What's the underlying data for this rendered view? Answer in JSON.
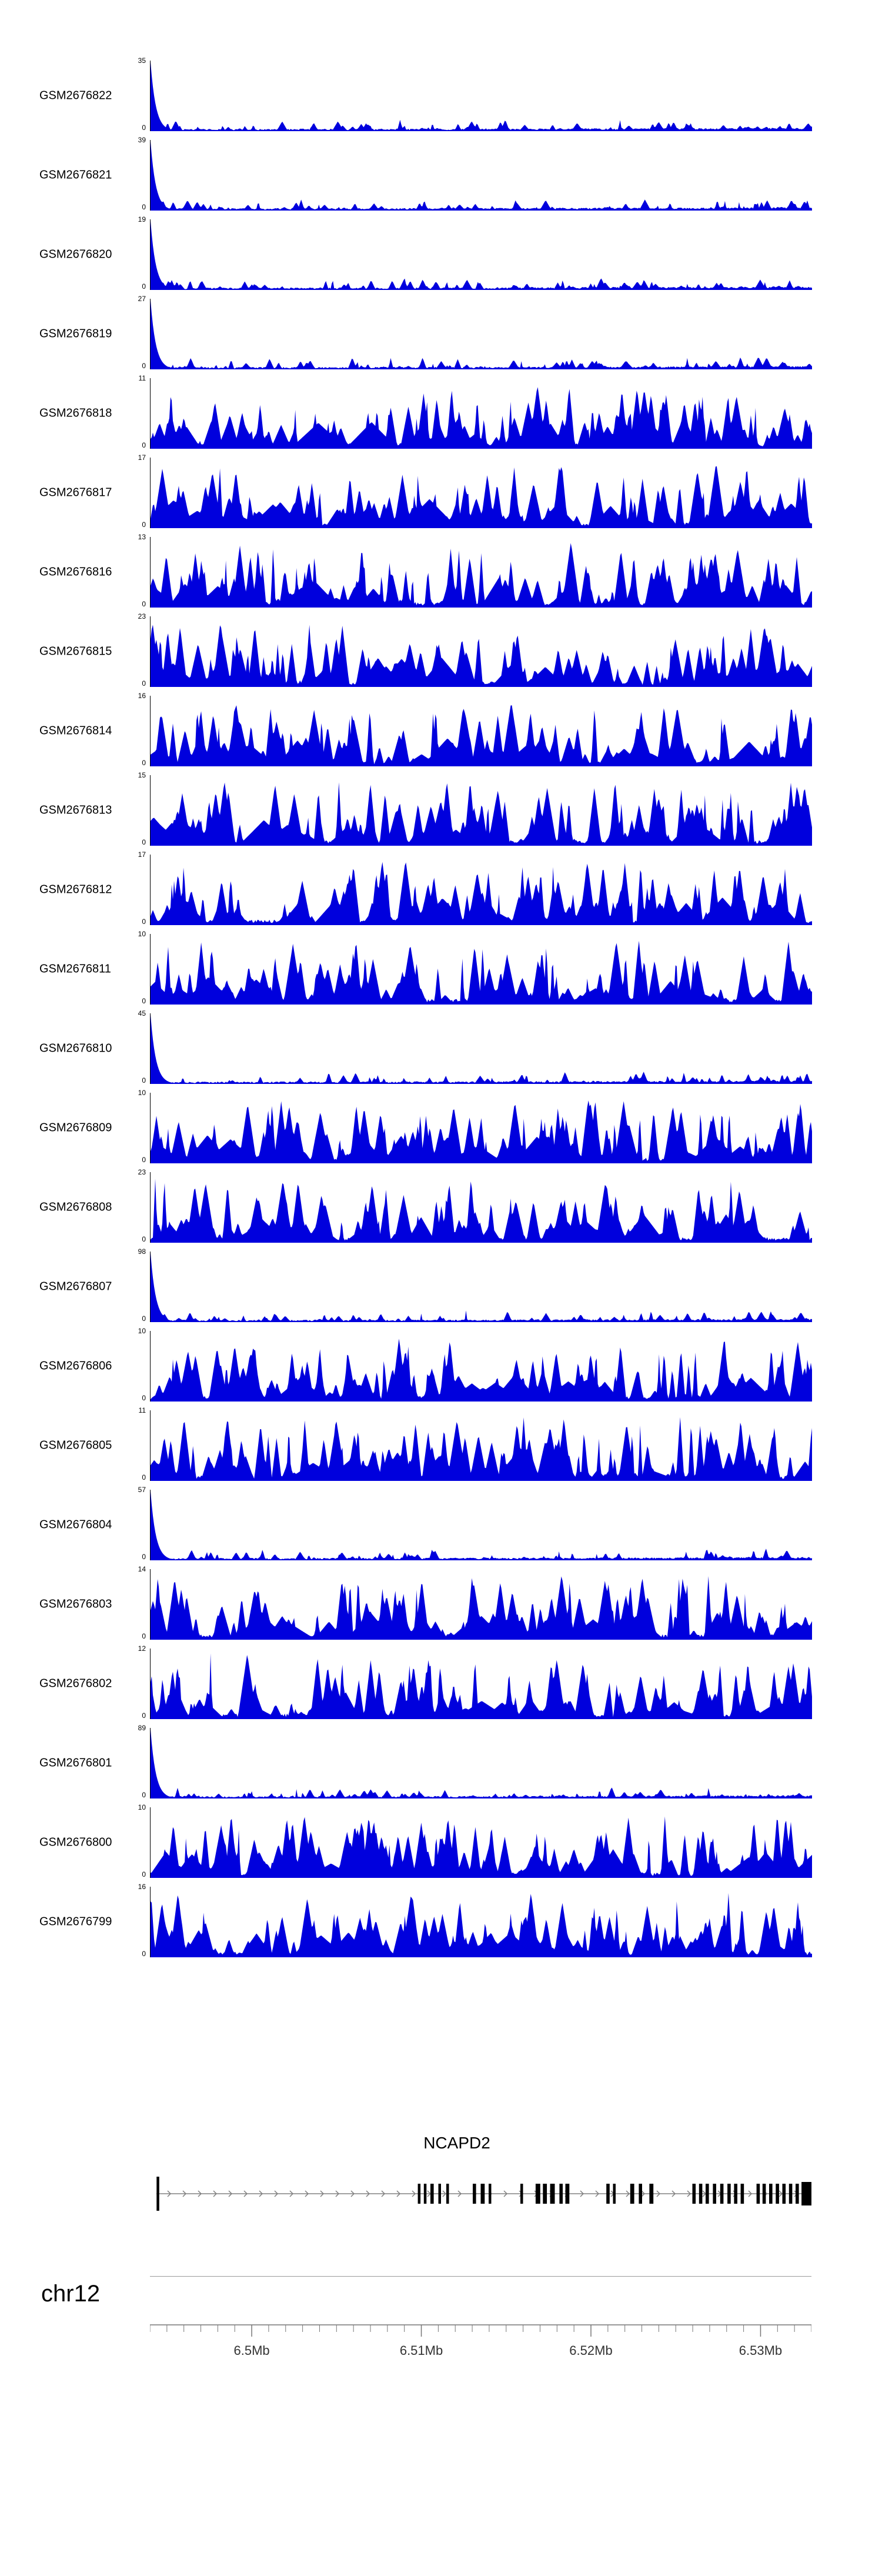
{
  "colors": {
    "signal": "#0000DD",
    "exon": "#000000",
    "gene_line": "#808080",
    "axis_line": "#9a9a9a",
    "tick": "#777777",
    "tick_label": "#333333"
  },
  "chart_data": {
    "type": "area",
    "description": "Genome browser coverage tracks over chr12 NCAPD2 locus",
    "x_axis": {
      "chrom": "chr12",
      "start_mb": 6.494,
      "end_mb": 6.533,
      "minor_step_mb": 0.001,
      "major_ticks": [
        {
          "mb": 6.5,
          "label": "6.5Mb"
        },
        {
          "mb": 6.51,
          "label": "6.51Mb"
        },
        {
          "mb": 6.52,
          "label": "6.52Mb"
        },
        {
          "mb": 6.53,
          "label": "6.53Mb"
        }
      ]
    },
    "tracks": [
      {
        "name": "GSM2676822",
        "ymax": 35,
        "ymin": 0,
        "profile": "spike",
        "seed": 101
      },
      {
        "name": "GSM2676821",
        "ymax": 39,
        "ymin": 0,
        "profile": "spike",
        "seed": 102
      },
      {
        "name": "GSM2676820",
        "ymax": 19,
        "ymin": 0,
        "profile": "spike",
        "seed": 103
      },
      {
        "name": "GSM2676819",
        "ymax": 27,
        "ymin": 0,
        "profile": "spike",
        "seed": 104
      },
      {
        "name": "GSM2676818",
        "ymax": 11,
        "ymin": 0,
        "profile": "dense",
        "seed": 105
      },
      {
        "name": "GSM2676817",
        "ymax": 17,
        "ymin": 0,
        "profile": "dense",
        "seed": 106
      },
      {
        "name": "GSM2676816",
        "ymax": 13,
        "ymin": 0,
        "profile": "dense",
        "seed": 107
      },
      {
        "name": "GSM2676815",
        "ymax": 23,
        "ymin": 0,
        "profile": "dense",
        "seed": 108
      },
      {
        "name": "GSM2676814",
        "ymax": 16,
        "ymin": 0,
        "profile": "dense",
        "seed": 109
      },
      {
        "name": "GSM2676813",
        "ymax": 15,
        "ymin": 0,
        "profile": "dense",
        "seed": 110
      },
      {
        "name": "GSM2676812",
        "ymax": 17,
        "ymin": 0,
        "profile": "dense",
        "seed": 111
      },
      {
        "name": "GSM2676811",
        "ymax": 10,
        "ymin": 0,
        "profile": "dense",
        "seed": 112
      },
      {
        "name": "GSM2676810",
        "ymax": 45,
        "ymin": 0,
        "profile": "spike",
        "seed": 113
      },
      {
        "name": "GSM2676809",
        "ymax": 10,
        "ymin": 0,
        "profile": "dense",
        "seed": 114
      },
      {
        "name": "GSM2676808",
        "ymax": 23,
        "ymin": 0,
        "profile": "dense",
        "seed": 115
      },
      {
        "name": "GSM2676807",
        "ymax": 98,
        "ymin": 0,
        "profile": "spike",
        "seed": 116
      },
      {
        "name": "GSM2676806",
        "ymax": 10,
        "ymin": 0,
        "profile": "dense",
        "seed": 117
      },
      {
        "name": "GSM2676805",
        "ymax": 11,
        "ymin": 0,
        "profile": "dense",
        "seed": 118
      },
      {
        "name": "GSM2676804",
        "ymax": 57,
        "ymin": 0,
        "profile": "spike",
        "seed": 119
      },
      {
        "name": "GSM2676803",
        "ymax": 14,
        "ymin": 0,
        "profile": "dense",
        "seed": 120
      },
      {
        "name": "GSM2676802",
        "ymax": 12,
        "ymin": 0,
        "profile": "dense",
        "seed": 121
      },
      {
        "name": "GSM2676801",
        "ymax": 89,
        "ymin": 0,
        "profile": "spike",
        "seed": 122
      },
      {
        "name": "GSM2676800",
        "ymax": 10,
        "ymin": 0,
        "profile": "dense",
        "seed": 123
      },
      {
        "name": "GSM2676799",
        "ymax": 16,
        "ymin": 0,
        "profile": "dense",
        "seed": 124
      }
    ],
    "gene": {
      "name": "NCAPD2",
      "strand": "+",
      "exons": [
        {
          "x": 0.01,
          "w": 0.004,
          "tall": true
        },
        {
          "x": 0.405,
          "w": 0.004
        },
        {
          "x": 0.414,
          "w": 0.004
        },
        {
          "x": 0.424,
          "w": 0.005
        },
        {
          "x": 0.436,
          "w": 0.004
        },
        {
          "x": 0.448,
          "w": 0.004
        },
        {
          "x": 0.488,
          "w": 0.005
        },
        {
          "x": 0.5,
          "w": 0.006
        },
        {
          "x": 0.512,
          "w": 0.004
        },
        {
          "x": 0.56,
          "w": 0.004
        },
        {
          "x": 0.583,
          "w": 0.007
        },
        {
          "x": 0.594,
          "w": 0.006
        },
        {
          "x": 0.605,
          "w": 0.007
        },
        {
          "x": 0.619,
          "w": 0.005
        },
        {
          "x": 0.628,
          "w": 0.006
        },
        {
          "x": 0.69,
          "w": 0.005
        },
        {
          "x": 0.7,
          "w": 0.004
        },
        {
          "x": 0.726,
          "w": 0.006
        },
        {
          "x": 0.739,
          "w": 0.005
        },
        {
          "x": 0.755,
          "w": 0.006
        },
        {
          "x": 0.82,
          "w": 0.005
        },
        {
          "x": 0.83,
          "w": 0.005
        },
        {
          "x": 0.84,
          "w": 0.005
        },
        {
          "x": 0.851,
          "w": 0.005
        },
        {
          "x": 0.862,
          "w": 0.005
        },
        {
          "x": 0.873,
          "w": 0.005
        },
        {
          "x": 0.883,
          "w": 0.005
        },
        {
          "x": 0.893,
          "w": 0.005
        },
        {
          "x": 0.917,
          "w": 0.005
        },
        {
          "x": 0.926,
          "w": 0.005
        },
        {
          "x": 0.936,
          "w": 0.005
        },
        {
          "x": 0.946,
          "w": 0.005
        },
        {
          "x": 0.956,
          "w": 0.005
        },
        {
          "x": 0.966,
          "w": 0.005
        },
        {
          "x": 0.976,
          "w": 0.005
        },
        {
          "x": 0.985,
          "w": 0.015,
          "thick": true
        }
      ]
    }
  }
}
